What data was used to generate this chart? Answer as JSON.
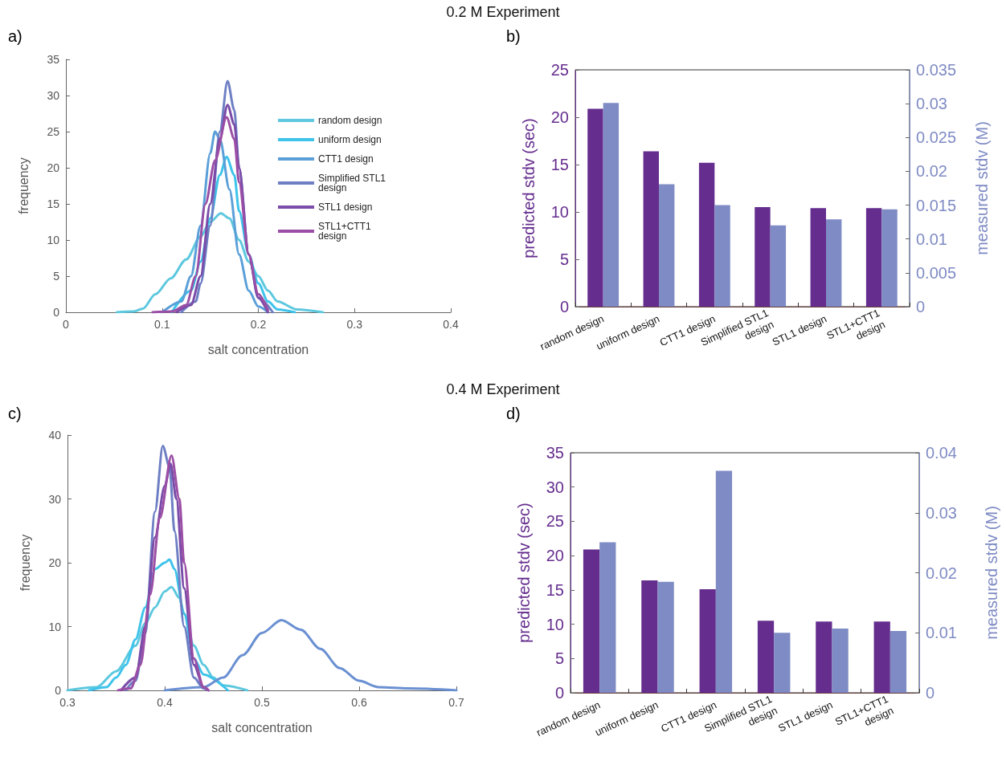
{
  "chart_data": [
    {
      "type": "line",
      "title": "0.2 M Experiment",
      "annotations": [
        "a)"
      ],
      "xlabel": "salt concentration",
      "ylabel": "frequency",
      "xlim": [
        0,
        0.4
      ],
      "xticks": [
        0,
        0.1,
        0.2,
        0.3,
        0.4
      ],
      "ylim": [
        0,
        35
      ],
      "yticks": [
        0,
        5,
        10,
        15,
        20,
        25,
        30,
        35
      ],
      "legend": "top right",
      "series": [
        {
          "name": "random design",
          "color": "#5dc8de",
          "x": [
            0.053,
            0.07,
            0.08,
            0.093,
            0.109,
            0.125,
            0.14,
            0.15,
            0.161,
            0.17,
            0.18,
            0.19,
            0.2,
            0.21,
            0.22,
            0.24,
            0.267
          ],
          "values": [
            0,
            0.1,
            0.5,
            2.5,
            4.7,
            7.3,
            10.5,
            12.5,
            13.7,
            13,
            10,
            7,
            5,
            3,
            1.5,
            0.4,
            0
          ]
        },
        {
          "name": "uniform design",
          "color": "#3ec3ea",
          "x": [
            0.11,
            0.13,
            0.14,
            0.15,
            0.16,
            0.167,
            0.175,
            0.18,
            0.19,
            0.2,
            0.21,
            0.22,
            0.238
          ],
          "values": [
            0,
            3,
            7,
            13,
            19,
            21.5,
            19,
            14,
            8,
            4,
            1.5,
            0.4,
            0
          ]
        },
        {
          "name": "CTT1 design",
          "color": "#5a9fd8",
          "x": [
            0.1,
            0.12,
            0.13,
            0.14,
            0.15,
            0.155,
            0.16,
            0.17,
            0.18,
            0.19,
            0.2,
            0.21
          ],
          "values": [
            0,
            1.5,
            5,
            12,
            22,
            25,
            24,
            17,
            8,
            3,
            0.8,
            0
          ]
        },
        {
          "name": "Simplified STL1\ndesign",
          "color": "#6e7fc4",
          "x": [
            0.12,
            0.135,
            0.14,
            0.15,
            0.16,
            0.168,
            0.175,
            0.18,
            0.19,
            0.2,
            0.215
          ],
          "values": [
            0,
            1.5,
            4,
            12,
            25,
            32,
            28,
            20,
            8,
            2,
            0
          ]
        },
        {
          "name": "STL1 design",
          "color": "#7a4ba8",
          "x": [
            0.115,
            0.13,
            0.14,
            0.15,
            0.16,
            0.168,
            0.175,
            0.18,
            0.19,
            0.2,
            0.21
          ],
          "values": [
            0,
            1,
            5,
            15,
            24,
            28.7,
            26,
            20,
            8,
            2,
            0
          ]
        },
        {
          "name": "STL1+CTT1\ndesign",
          "color": "#9b4ea5",
          "x": [
            0.09,
            0.11,
            0.125,
            0.135,
            0.145,
            0.155,
            0.167,
            0.175,
            0.18,
            0.19,
            0.2,
            0.21
          ],
          "values": [
            0,
            0.1,
            1,
            5,
            15,
            21,
            27,
            24,
            18,
            8,
            2.5,
            0.3
          ]
        }
      ]
    },
    {
      "type": "bar",
      "annotations": [
        "b)"
      ],
      "categories": [
        "random design",
        "uniform design",
        "CTT1 design",
        "Simplified STL1\ndesign",
        "STL1 design",
        "STL1+CTT1\ndesign"
      ],
      "ylabel": "predicted stdv (sec)",
      "y2label": "measured stdv (M)",
      "ylim": [
        0,
        25
      ],
      "yticks": [
        0,
        5,
        10,
        15,
        20,
        25
      ],
      "y2lim": [
        0,
        0.035
      ],
      "y2ticks": [
        0,
        0.005,
        0.01,
        0.015,
        0.02,
        0.025,
        0.03,
        0.035
      ],
      "series": [
        {
          "color": "#652d8e",
          "values": [
            20.9,
            16.4,
            15.2,
            10.5,
            10.4,
            10.4
          ]
        },
        {
          "color": "#7f8bc4",
          "axis": "y2",
          "values": [
            0.0301,
            0.0181,
            0.015,
            0.012,
            0.0129,
            0.0144
          ]
        }
      ]
    },
    {
      "type": "line",
      "title": "0.4 M Experiment",
      "annotations": [
        "c)"
      ],
      "xlabel": "salt concentration",
      "ylabel": "frequency",
      "xlim": [
        0.3,
        0.7
      ],
      "xticks": [
        0.3,
        0.4,
        0.5,
        0.6,
        0.7
      ],
      "ylim": [
        0,
        40
      ],
      "yticks": [
        0,
        10,
        20,
        30,
        40
      ],
      "series": [
        {
          "color": "#5dc8de",
          "x": [
            0.3,
            0.33,
            0.35,
            0.37,
            0.38,
            0.39,
            0.4,
            0.407,
            0.415,
            0.42,
            0.43,
            0.44,
            0.45,
            0.46,
            0.485
          ],
          "values": [
            0,
            0.5,
            3,
            7,
            10.5,
            13,
            15.5,
            16.2,
            14.5,
            12,
            7,
            4,
            2,
            0.8,
            0
          ]
        },
        {
          "color": "#3ec3ea",
          "x": [
            0.322,
            0.34,
            0.35,
            0.36,
            0.37,
            0.38,
            0.39,
            0.4,
            0.405,
            0.41,
            0.42,
            0.43,
            0.44,
            0.465
          ],
          "values": [
            0,
            0.5,
            2,
            4,
            8,
            13,
            19,
            20,
            20.5,
            19,
            12,
            5,
            2.5,
            0
          ]
        },
        {
          "color": "#6a90d2",
          "x": [
            0.4,
            0.44,
            0.46,
            0.48,
            0.5,
            0.52,
            0.54,
            0.56,
            0.58,
            0.6,
            0.62,
            0.65,
            0.7
          ],
          "values": [
            0,
            0.5,
            2,
            5.5,
            9,
            11,
            9.5,
            6.5,
            3.5,
            1.5,
            0.5,
            0.3,
            0
          ]
        },
        {
          "color": "#6e7fc4",
          "x": [
            0.36,
            0.37,
            0.38,
            0.39,
            0.398,
            0.405,
            0.41,
            0.42,
            0.43,
            0.44,
            0.445
          ],
          "values": [
            0,
            1.5,
            9,
            28,
            38.3,
            35,
            25,
            10,
            2,
            0.3,
            0
          ]
        },
        {
          "color": "#7a4ba8",
          "x": [
            0.355,
            0.37,
            0.38,
            0.39,
            0.4,
            0.406,
            0.412,
            0.42,
            0.43,
            0.44,
            0.445
          ],
          "values": [
            0,
            2,
            10,
            24,
            32,
            35.5,
            30,
            16,
            4,
            0.5,
            0
          ]
        },
        {
          "color": "#9b4ea5",
          "x": [
            0.352,
            0.365,
            0.375,
            0.385,
            0.395,
            0.407,
            0.415,
            0.42,
            0.43,
            0.44,
            0.445
          ],
          "values": [
            0,
            0.3,
            4,
            15,
            27,
            36.8,
            30,
            20,
            5,
            0.5,
            0
          ]
        }
      ]
    },
    {
      "type": "bar",
      "annotations": [
        "d)"
      ],
      "categories": [
        "random design",
        "uniform design",
        "CTT1 design",
        "Simplified STL1\ndesign",
        "STL1 design",
        "STL1+CTT1\ndesign"
      ],
      "ylabel": "predicted stdv (sec)",
      "y2label": "measured stdv (M)",
      "ylim": [
        0,
        35
      ],
      "yticks": [
        0,
        5,
        10,
        15,
        20,
        25,
        30,
        35
      ],
      "y2lim": [
        0,
        0.04
      ],
      "y2ticks": [
        0,
        0.01,
        0.02,
        0.03,
        0.04
      ],
      "series": [
        {
          "color": "#652d8e",
          "values": [
            20.9,
            16.4,
            15.1,
            10.5,
            10.4,
            10.4
          ]
        },
        {
          "color": "#7f8bc4",
          "axis": "y2",
          "values": [
            0.0251,
            0.0185,
            0.037,
            0.01,
            0.0107,
            0.0103
          ]
        }
      ]
    }
  ]
}
